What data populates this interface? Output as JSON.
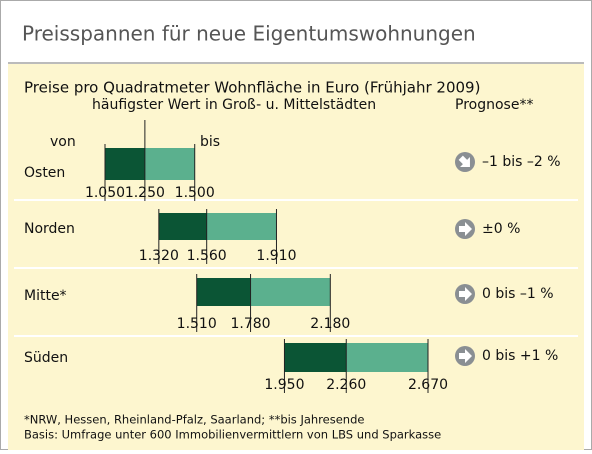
{
  "title": "Preisspannen für neue Eigentumswohnungen",
  "chart_data": {
    "type": "range_bar",
    "subtitle": "Preise pro Quadratmeter Wohnfläche in Euro (Frühjahr 2009)",
    "mid_label": "häufigster Wert in Groß- u. Mittelstädten",
    "prognosis_label": "Prognose**",
    "from_label": "von",
    "to_label": "bis",
    "categories": [
      "Osten",
      "Norden",
      "Mitte*",
      "Süden"
    ],
    "low": {
      "values": [
        1050,
        1320,
        1510,
        1950
      ],
      "value_labels": [
        "1.050",
        "1.320",
        "1.510",
        "1.950"
      ],
      "color": "#0b5535"
    },
    "mid": {
      "values": [
        1250,
        1560,
        1780,
        2260
      ],
      "value_labels": [
        "1.250",
        "1.560",
        "1.780",
        "2.260"
      ],
      "color": "#5bb08e"
    },
    "high": {
      "values": [
        1500,
        1910,
        2180,
        2670
      ],
      "value_labels": [
        "1.500",
        "1.910",
        "2.180",
        "2.670"
      ]
    },
    "prognosis": [
      "–1 bis –2 %",
      "±0 %",
      "0 bis –1 %",
      "0 bis +1 %"
    ]
  },
  "footnotes": [
    "*NRW, Hessen, Rheinland-Pfalz, Saarland; **bis Jahresende",
    "Basis: Umfrage unter 600 Immobilienvermittlern von LBS und Sparkasse"
  ]
}
